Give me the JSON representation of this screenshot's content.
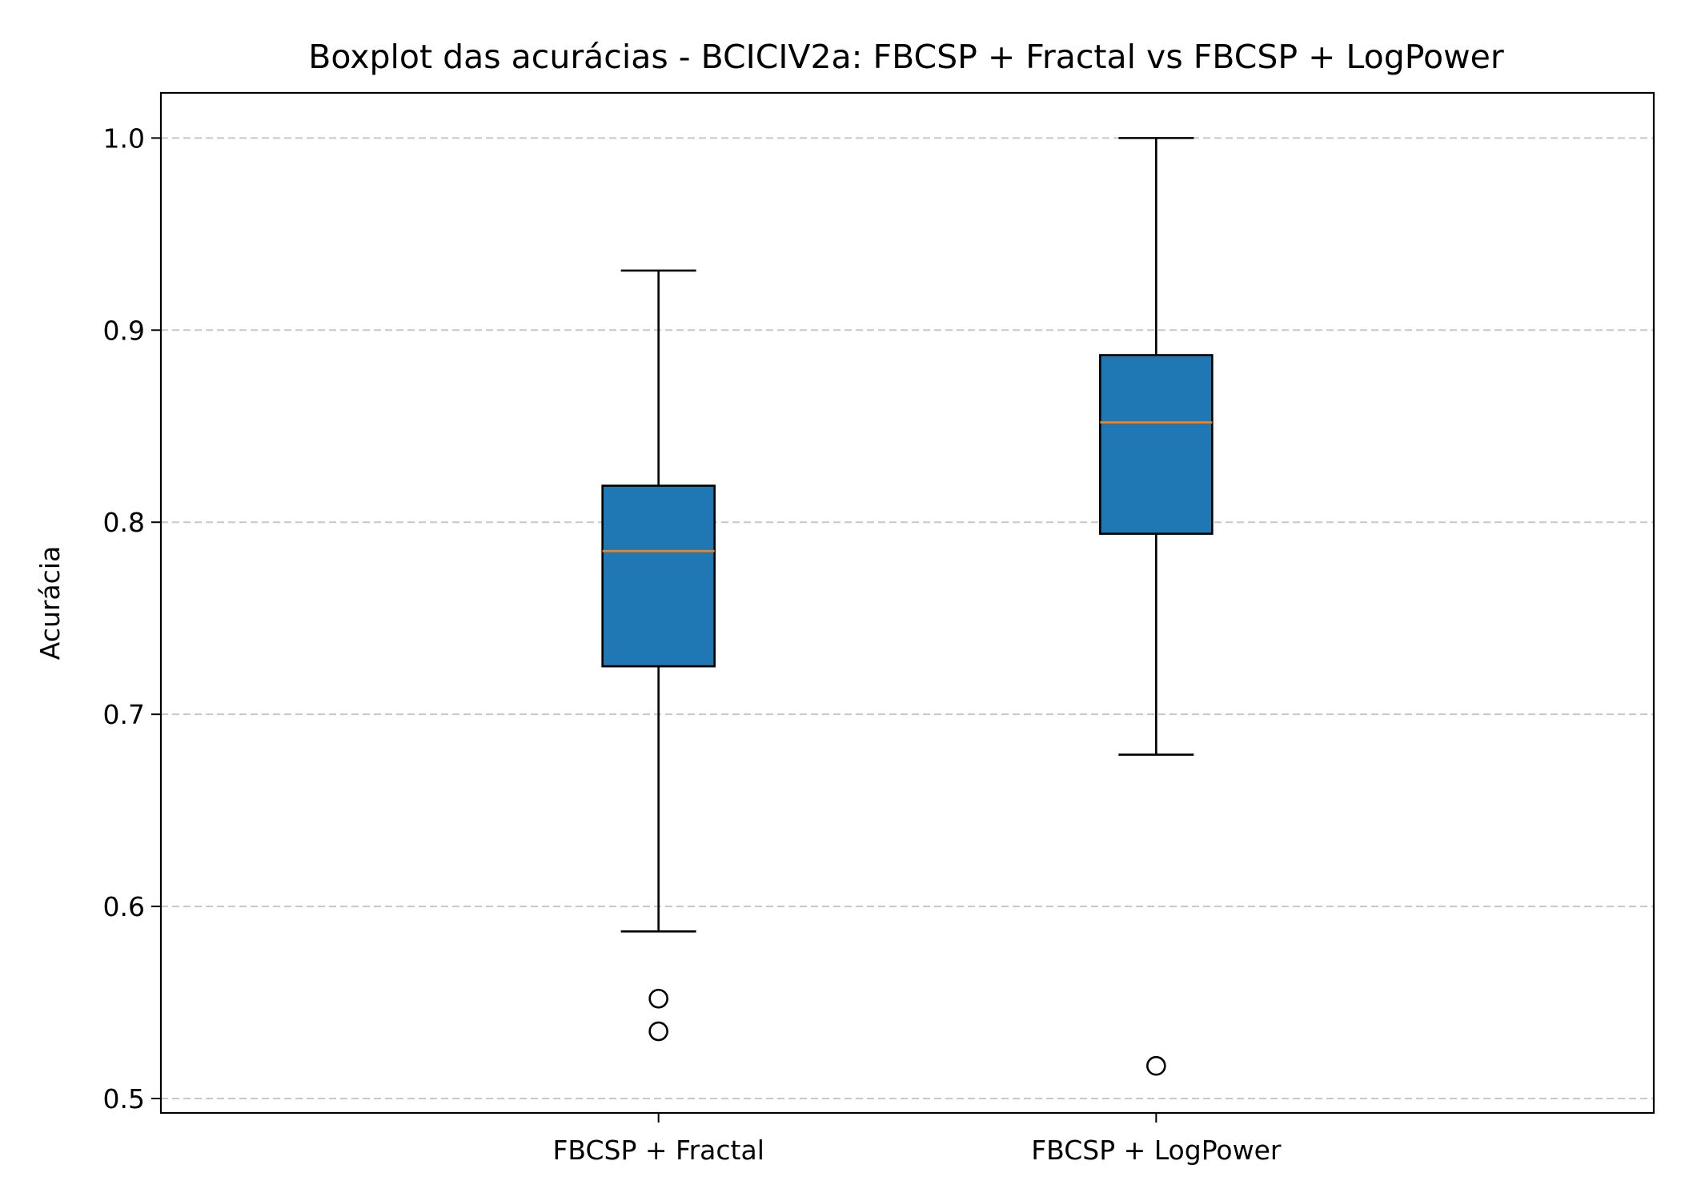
{
  "chart_data": {
    "type": "boxplot",
    "title": "Boxplot das acurácias - BCICIV2a: FBCSP + Fractal vs FBCSP + LogPower",
    "xlabel": "",
    "ylabel": "Acurácia",
    "ylim": [
      0.4925,
      1.0235
    ],
    "yticks": [
      0.5,
      0.6,
      0.7,
      0.8,
      0.9,
      1.0
    ],
    "ytick_labels": [
      "0.5",
      "0.6",
      "0.7",
      "0.8",
      "0.9",
      "1.0"
    ],
    "grid": "y-dashed",
    "categories": [
      "FBCSP + Fractal",
      "FBCSP + LogPower"
    ],
    "boxes": [
      {
        "whisker_low": 0.587,
        "q1": 0.725,
        "median": 0.785,
        "q3": 0.819,
        "whisker_high": 0.931,
        "outliers": [
          0.552,
          0.535
        ]
      },
      {
        "whisker_low": 0.679,
        "q1": 0.794,
        "median": 0.852,
        "q3": 0.887,
        "whisker_high": 1.0,
        "outliers": [
          0.517
        ]
      }
    ],
    "colors": {
      "box_fill": "#1f77b4",
      "median": "#ff7f0e",
      "grid": "#c8c8c8",
      "edge": "#000000"
    }
  }
}
